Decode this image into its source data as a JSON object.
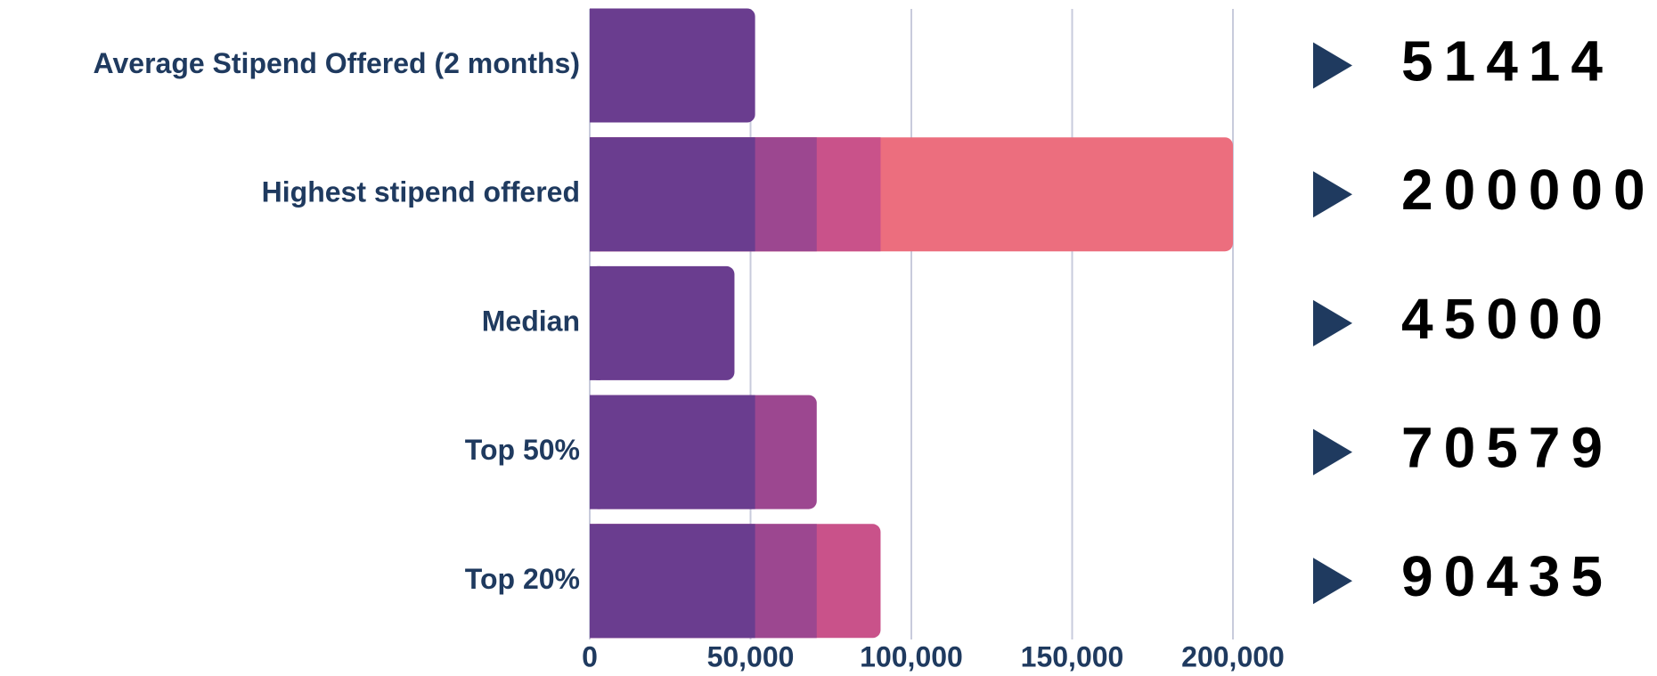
{
  "chart_data": {
    "type": "bar",
    "orientation": "horizontal",
    "categories": [
      "Average Stipend Offered (2 months)",
      "Highest stipend offered",
      "Median",
      "Top 50%",
      "Top 20%"
    ],
    "values": [
      51414,
      200000,
      45000,
      70579,
      90435
    ],
    "colors": [
      "#6a3d8f",
      "#9c4790",
      "#c9528a",
      "#ec6e7e"
    ],
    "xlim": [
      0,
      200000
    ],
    "xticks": [
      0,
      {
        "value": 50000,
        "label": "50,000"
      },
      {
        "value": 100000,
        "label": "100,000"
      },
      {
        "value": 150000,
        "label": "150,000"
      },
      {
        "value": 200000,
        "label": "200,000"
      }
    ],
    "grid": true
  }
}
